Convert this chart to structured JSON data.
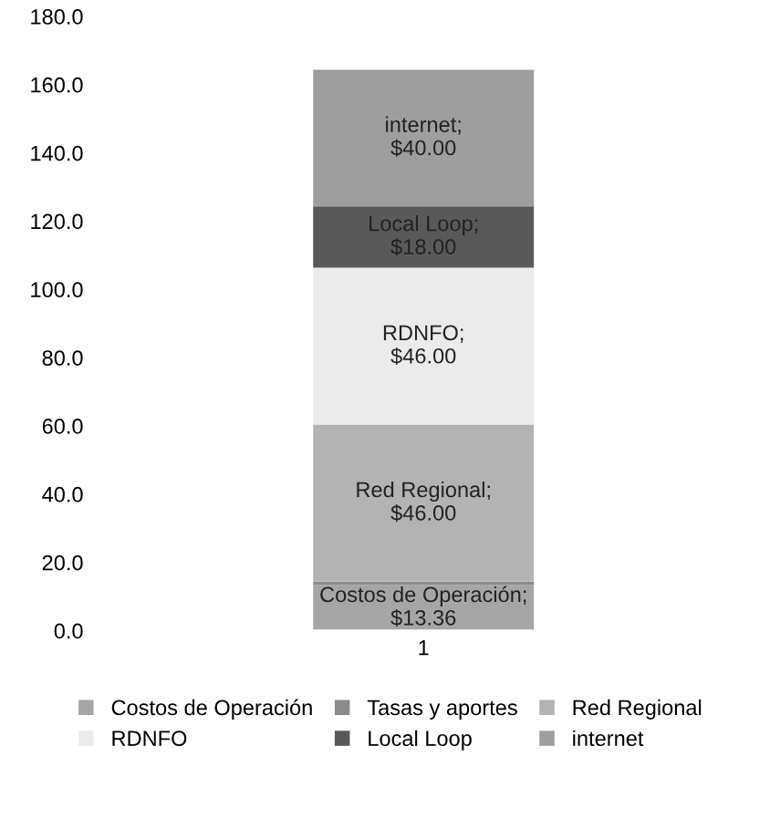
{
  "chart_data": {
    "type": "bar",
    "stacked": true,
    "categories": [
      "1"
    ],
    "series": [
      {
        "name": "Costos de Operación",
        "color": "#a6a6a6",
        "values": [
          13.36
        ],
        "value_labels": [
          "Costos de Operación; $13.36"
        ]
      },
      {
        "name": "Tasas y aportes",
        "color": "#8c8c8c",
        "values": [
          1
        ],
        "value_labels": [
          null
        ]
      },
      {
        "name": "Red Regional",
        "color": "#b3b3b3",
        "values": [
          46
        ],
        "value_labels": [
          "Red Regional; $46.00"
        ]
      },
      {
        "name": "RDNFO",
        "color": "#ebebeb",
        "values": [
          46
        ],
        "value_labels": [
          "RDNFO; $46.00"
        ]
      },
      {
        "name": "Local Loop",
        "color": "#595959",
        "values": [
          18
        ],
        "value_labels": [
          "Local Loop; $18.00"
        ]
      },
      {
        "name": "internet",
        "color": "#9e9e9e",
        "values": [
          40
        ],
        "value_labels": [
          "internet; $40.00"
        ]
      }
    ],
    "ylim": [
      0,
      180
    ],
    "yticks": [
      {
        "value": 0,
        "label": "0.0"
      },
      {
        "value": 20,
        "label": "20.0"
      },
      {
        "value": 40,
        "label": "40.0"
      },
      {
        "value": 60,
        "label": "60.0"
      },
      {
        "value": 80,
        "label": "80.0"
      },
      {
        "value": 100,
        "label": "100.0"
      },
      {
        "value": 120,
        "label": "120.0"
      },
      {
        "value": 140,
        "label": "140.0"
      },
      {
        "value": 160,
        "label": "160.0"
      },
      {
        "value": 180,
        "label": "180.0"
      }
    ],
    "grid": false,
    "legend": "bottom"
  }
}
